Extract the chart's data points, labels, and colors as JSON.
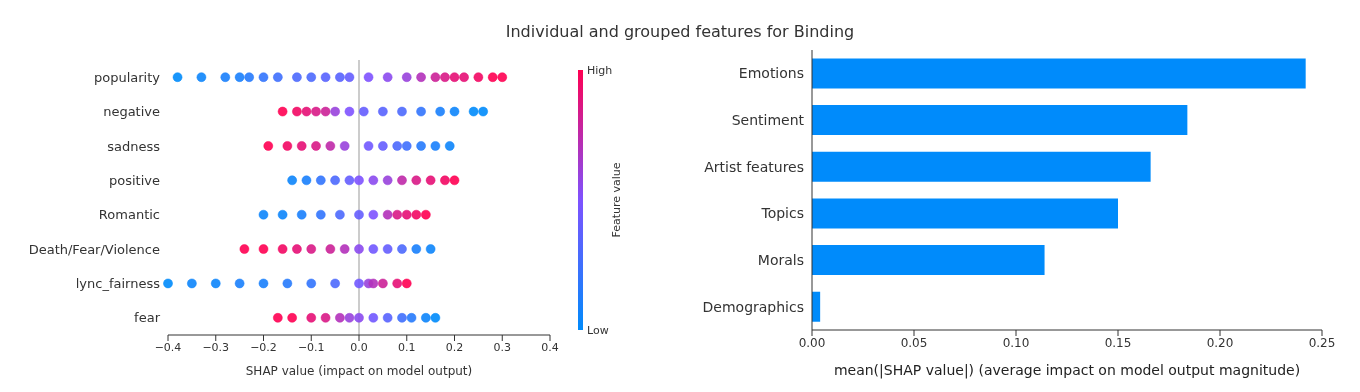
{
  "chart_data": [
    {
      "type": "scatter",
      "title": "Individual and grouped features for Binding",
      "orientation": "horizontal",
      "categories": [
        "popularity",
        "negative",
        "sadness",
        "positive",
        "Romantic",
        "Death/Fear/Violence",
        "lync_fairness",
        "fear"
      ],
      "series": [
        {
          "values": [
            -0.38,
            -0.33,
            -0.28,
            -0.25,
            -0.23,
            -0.2,
            -0.17,
            -0.13,
            -0.1,
            -0.07,
            -0.04,
            -0.02,
            0.02,
            0.06,
            0.1,
            0.13,
            0.16,
            0.18,
            0.2,
            0.22,
            0.25,
            0.28,
            0.3
          ],
          "x": [
            "popularity",
            "popularity",
            "popularity",
            "popularity",
            "popularity",
            "popularity",
            "popularity",
            "popularity",
            "popularity",
            "popularity",
            "popularity",
            "popularity",
            "popularity",
            "popularity",
            "popularity",
            "popularity",
            "popularity",
            "popularity",
            "popularity",
            "popularity",
            "popularity",
            "popularity",
            "popularity"
          ],
          "cvalues": [
            0,
            0.05,
            0.1,
            0.1,
            0.15,
            0.2,
            0.25,
            0.3,
            0.3,
            0.35,
            0.35,
            0.4,
            0.5,
            0.55,
            0.6,
            0.7,
            0.8,
            0.85,
            0.9,
            0.9,
            0.95,
            1,
            1
          ],
          "colors": [
            "#008bfb",
            "#0d85fb",
            "#1980fc",
            "#1980fc",
            "#267afc",
            "#3274fd",
            "#3f6ffd",
            "#4c69fd",
            "#4c69fd",
            "#5863fe",
            "#5863fe",
            "#655dfe",
            "#7e52ff",
            "#8b4aee",
            "#9842dc",
            "#b231ba",
            "#cb2197",
            "#d81986",
            "#e51075",
            "#e51075",
            "#f20863",
            "#ff0052",
            "#ff0052"
          ]
        },
        {
          "values": [
            -0.16,
            -0.13,
            -0.11,
            -0.09,
            -0.07,
            -0.05,
            -0.02,
            0.01,
            0.05,
            0.09,
            0.13,
            0.17,
            0.2,
            0.24,
            0.26
          ],
          "x": [
            "negative",
            "negative",
            "negative",
            "negative",
            "negative",
            "negative",
            "negative",
            "negative",
            "negative",
            "negative",
            "negative",
            "negative",
            "negative",
            "negative",
            "negative"
          ],
          "cvalues": [
            1,
            0.95,
            0.9,
            0.85,
            0.8,
            0.6,
            0.5,
            0.4,
            0.35,
            0.3,
            0.2,
            0.1,
            0.05,
            0,
            0
          ],
          "colors": [
            "#ff0052",
            "#f20863",
            "#e51075",
            "#d81986",
            "#cb2197",
            "#9842dc",
            "#7e52ff",
            "#655dfe",
            "#5863fe",
            "#4c69fd",
            "#3274fd",
            "#1980fc",
            "#0d85fb",
            "#008bfb",
            "#008bfb"
          ]
        },
        {
          "values": [
            -0.19,
            -0.15,
            -0.12,
            -0.09,
            -0.06,
            -0.03,
            0.02,
            0.05,
            0.08,
            0.1,
            0.13,
            0.16,
            0.19
          ],
          "x": [
            "sadness",
            "sadness",
            "sadness",
            "sadness",
            "sadness",
            "sadness",
            "sadness",
            "sadness",
            "sadness",
            "sadness",
            "sadness",
            "sadness",
            "sadness"
          ],
          "cvalues": [
            1,
            0.95,
            0.9,
            0.85,
            0.75,
            0.6,
            0.45,
            0.4,
            0.3,
            0.25,
            0.15,
            0.1,
            0.05
          ],
          "colors": [
            "#ff0052",
            "#f20863",
            "#e51075",
            "#d81986",
            "#bf29a9",
            "#9842dc",
            "#7158ff",
            "#655dfe",
            "#4c69fd",
            "#3f6ffd",
            "#267afc",
            "#1980fc",
            "#0d85fb"
          ]
        },
        {
          "values": [
            -0.14,
            -0.11,
            -0.08,
            -0.05,
            -0.02,
            0,
            0.03,
            0.06,
            0.09,
            0.12,
            0.15,
            0.18,
            0.2
          ],
          "x": [
            "positive",
            "positive",
            "positive",
            "positive",
            "positive",
            "positive",
            "positive",
            "positive",
            "positive",
            "positive",
            "positive",
            "positive",
            "positive"
          ],
          "cvalues": [
            0.05,
            0.1,
            0.2,
            0.3,
            0.4,
            0.5,
            0.55,
            0.6,
            0.75,
            0.85,
            0.9,
            0.95,
            1
          ],
          "colors": [
            "#0d85fb",
            "#1980fc",
            "#3274fd",
            "#4c69fd",
            "#655dfe",
            "#7e52ff",
            "#8b4aee",
            "#9842dc",
            "#bf29a9",
            "#d81986",
            "#e51075",
            "#f20863",
            "#ff0052"
          ]
        },
        {
          "values": [
            -0.2,
            -0.16,
            -0.12,
            -0.08,
            -0.04,
            0,
            0.03,
            0.06,
            0.08,
            0.1,
            0.12,
            0.14
          ],
          "x": [
            "Romantic",
            "Romantic",
            "Romantic",
            "Romantic",
            "Romantic",
            "Romantic",
            "Romantic",
            "Romantic",
            "Romantic",
            "Romantic",
            "Romantic",
            "Romantic"
          ],
          "cvalues": [
            0.05,
            0.05,
            0.1,
            0.2,
            0.3,
            0.4,
            0.5,
            0.7,
            0.85,
            0.9,
            0.95,
            1
          ],
          "colors": [
            "#0d85fb",
            "#0d85fb",
            "#1980fc",
            "#3274fd",
            "#4c69fd",
            "#655dfe",
            "#7e52ff",
            "#b231ba",
            "#d81986",
            "#e51075",
            "#f20863",
            "#ff0052"
          ]
        },
        {
          "values": [
            -0.24,
            -0.2,
            -0.16,
            -0.13,
            -0.1,
            -0.06,
            -0.03,
            0,
            0.03,
            0.06,
            0.09,
            0.12,
            0.15
          ],
          "x": [
            "Death/Fear/Violence",
            "Death/Fear/Violence",
            "Death/Fear/Violence",
            "Death/Fear/Violence",
            "Death/Fear/Violence",
            "Death/Fear/Violence",
            "Death/Fear/Violence",
            "Death/Fear/Violence",
            "Death/Fear/Violence",
            "Death/Fear/Violence",
            "Death/Fear/Violence",
            "Death/Fear/Violence",
            "Death/Fear/Violence"
          ],
          "cvalues": [
            1,
            1,
            0.95,
            0.9,
            0.85,
            0.8,
            0.7,
            0.55,
            0.45,
            0.4,
            0.3,
            0.1,
            0.05
          ],
          "colors": [
            "#ff0052",
            "#ff0052",
            "#f20863",
            "#e51075",
            "#d81986",
            "#cb2197",
            "#b231ba",
            "#8b4aee",
            "#7158ff",
            "#655dfe",
            "#4c69fd",
            "#1980fc",
            "#0d85fb"
          ]
        },
        {
          "values": [
            -0.4,
            -0.35,
            -0.3,
            -0.25,
            -0.2,
            -0.15,
            -0.1,
            -0.05,
            0,
            0.02,
            0.03,
            0.05,
            0.08,
            0.1
          ],
          "x": [
            "lync_fairness",
            "lync_fairness",
            "lync_fairness",
            "lync_fairness",
            "lync_fairness",
            "lync_fairness",
            "lync_fairness",
            "lync_fairness",
            "lync_fairness",
            "lync_fairness",
            "lync_fairness",
            "lync_fairness",
            "lync_fairness",
            "lync_fairness"
          ],
          "cvalues": [
            0,
            0.05,
            0.05,
            0.1,
            0.1,
            0.15,
            0.2,
            0.3,
            0.45,
            0.6,
            0.7,
            0.8,
            0.9,
            1
          ],
          "colors": [
            "#008bfb",
            "#0d85fb",
            "#0d85fb",
            "#1980fc",
            "#1980fc",
            "#267afc",
            "#3274fd",
            "#4c69fd",
            "#7158ff",
            "#9842dc",
            "#b231ba",
            "#cb2197",
            "#e51075",
            "#ff0052"
          ]
        },
        {
          "values": [
            -0.17,
            -0.14,
            -0.1,
            -0.07,
            -0.04,
            -0.02,
            0,
            0.03,
            0.06,
            0.09,
            0.11,
            0.14,
            0.16
          ],
          "x": [
            "fear",
            "fear",
            "fear",
            "fear",
            "fear",
            "fear",
            "fear",
            "fear",
            "fear",
            "fear",
            "fear",
            "fear",
            "fear"
          ],
          "cvalues": [
            1,
            1,
            0.9,
            0.85,
            0.7,
            0.6,
            0.55,
            0.45,
            0.35,
            0.25,
            0.15,
            0.05,
            0
          ],
          "colors": [
            "#ff0052",
            "#ff0052",
            "#e51075",
            "#d81986",
            "#b231ba",
            "#9842dc",
            "#8b4aee",
            "#7158ff",
            "#5863fe",
            "#3f6ffd",
            "#267afc",
            "#0d85fb",
            "#008bfb"
          ]
        }
      ],
      "xlabel": "SHAP value (impact on model output)",
      "xlim": [
        -0.4,
        0.4
      ],
      "xticks": [
        {
          "value": -0.4,
          "label": "−0.4"
        },
        {
          "value": -0.3,
          "label": "−0.3"
        },
        {
          "value": -0.2,
          "label": "−0.2"
        },
        {
          "value": -0.1,
          "label": "−0.1"
        },
        {
          "value": 0,
          "label": "0.0"
        },
        {
          "value": 0.1,
          "label": "0.1"
        },
        {
          "value": 0.2,
          "label": "0.2"
        },
        {
          "value": 0.3,
          "label": "0.3"
        },
        {
          "value": 0.4,
          "label": "0.4"
        }
      ],
      "ref_lines": [
        {
          "axis": "x",
          "value": 0,
          "color": "#999999"
        }
      ],
      "clabel": "Feature value",
      "clim": [
        0,
        1
      ],
      "cticks": [
        {
          "value": 0,
          "label": "Low"
        },
        {
          "value": 1,
          "label": "High"
        }
      ],
      "grid": false,
      "legend": false
    },
    {
      "type": "bar",
      "orientation": "horizontal",
      "categories": [
        "Emotions",
        "Sentiment",
        "Artist features",
        "Topics",
        "Morals",
        "Demographics"
      ],
      "values": [
        0.242,
        0.184,
        0.166,
        0.15,
        0.114,
        0.004
      ],
      "color": "#008bfb",
      "xlabel": "mean(|SHAP value|) (average impact on model output magnitude)",
      "xlim": [
        0,
        0.25
      ],
      "xticks": [
        {
          "value": 0,
          "label": "0.00"
        },
        {
          "value": 0.05,
          "label": "0.05"
        },
        {
          "value": 0.1,
          "label": "0.10"
        },
        {
          "value": 0.15,
          "label": "0.15"
        },
        {
          "value": 0.2,
          "label": "0.20"
        },
        {
          "value": 0.25,
          "label": "0.25"
        }
      ],
      "grid": false,
      "legend": false
    }
  ]
}
